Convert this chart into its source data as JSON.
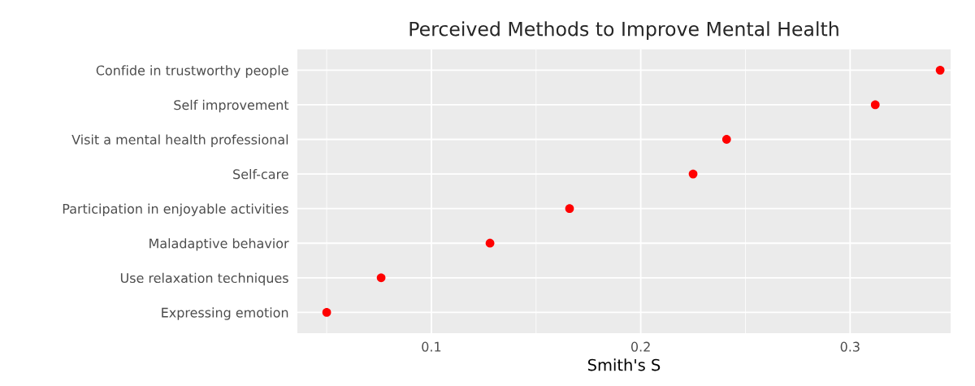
{
  "chart_data": {
    "type": "scatter",
    "title": "Perceived Methods to Improve Mental Health",
    "xlabel": "Smith's S",
    "orientation": "horizontal",
    "categories": [
      "Confide in trustworthy people",
      "Self improvement",
      "Visit a mental health professional",
      "Self-care",
      "Participation in enjoyable activities",
      "Maladaptive behavior",
      "Use relaxation techniques",
      "Expressing emotion"
    ],
    "series": [
      {
        "color": "#ff0000",
        "values": [
          0.343,
          0.312,
          0.241,
          0.225,
          0.166,
          0.128,
          0.076,
          0.05
        ]
      }
    ],
    "xlim": [
      0.036,
      0.348
    ],
    "xticks": [
      0.1,
      0.2,
      0.3
    ],
    "grid": true,
    "marker": "circle"
  }
}
